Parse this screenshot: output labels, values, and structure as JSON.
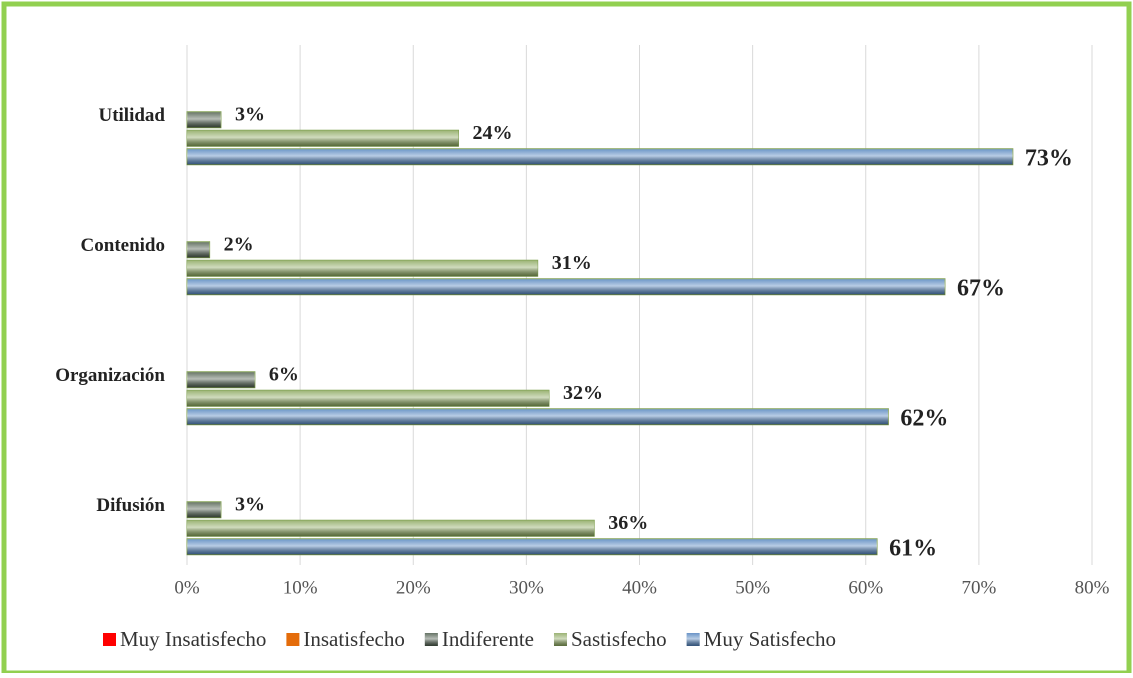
{
  "chart_data": {
    "type": "bar",
    "orientation": "horizontal",
    "categories": [
      "Utilidad",
      "Contenido",
      "Organización",
      "Difusión"
    ],
    "series": [
      {
        "name": "Muy Insatisfecho",
        "color": "#ff0000",
        "values": [
          0,
          0,
          0,
          0
        ]
      },
      {
        "name": "Insatisfecho",
        "color": "#e46c0a",
        "values": [
          0,
          0,
          0,
          0
        ]
      },
      {
        "name": "Indiferente",
        "color": "#4a5a4a",
        "values": [
          3,
          2,
          6,
          3
        ],
        "value_labels": [
          "3%",
          "2%",
          "6%",
          "3%"
        ]
      },
      {
        "name": "Sastisfecho",
        "color": "#8aa65c",
        "values": [
          24,
          31,
          32,
          36
        ],
        "value_labels": [
          "24%",
          "31%",
          "32%",
          "36%"
        ]
      },
      {
        "name": "Muy Satisfecho",
        "color": "#4f81bd",
        "values": [
          73,
          67,
          62,
          61
        ],
        "value_labels": [
          "73%",
          "67%",
          "62%",
          "61%"
        ]
      }
    ],
    "xlim": [
      0,
      80
    ],
    "xticks": [
      {
        "value": 0,
        "label": "0%"
      },
      {
        "value": 10,
        "label": "10%"
      },
      {
        "value": 20,
        "label": "20%"
      },
      {
        "value": 30,
        "label": "30%"
      },
      {
        "value": 40,
        "label": "40%"
      },
      {
        "value": 50,
        "label": "50%"
      },
      {
        "value": 60,
        "label": "60%"
      },
      {
        "value": 70,
        "label": "70%"
      },
      {
        "value": 80,
        "label": "80%"
      }
    ],
    "grid": true,
    "legend": "bottom"
  }
}
